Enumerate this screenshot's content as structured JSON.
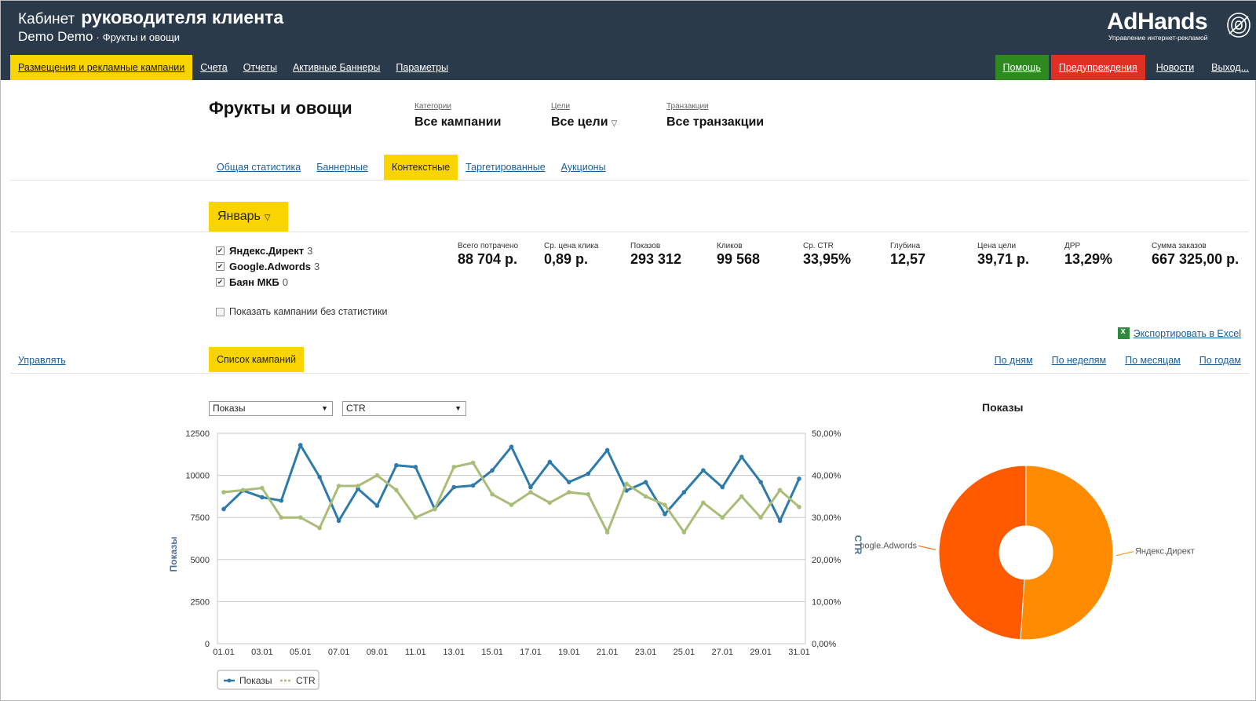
{
  "header": {
    "title_prefix": "Кабинет",
    "title_main": "руководителя клиента",
    "user": "Demo Demo",
    "separator": "·",
    "project": "Фрукты и овощи",
    "logo_text": "AdHands",
    "logo_sub": "Управление интернет-рекламой"
  },
  "nav": {
    "items": [
      {
        "label": "Размещения и рекламные кампании",
        "active": true
      },
      {
        "label": "Счета"
      },
      {
        "label": "Отчеты"
      },
      {
        "label": "Активные Баннеры"
      },
      {
        "label": "Параметры"
      }
    ],
    "help": "Помощь",
    "warnings": "Предупреждения",
    "news": "Новости",
    "exit": "Выход..."
  },
  "project": {
    "title": "Фрукты и овощи",
    "filters": [
      {
        "label": "Категории",
        "value": "Все кампании"
      },
      {
        "label": "Цели",
        "value": "Все цели"
      },
      {
        "label": "Транзакции",
        "value": "Все транзакции"
      }
    ]
  },
  "subtabs": [
    {
      "label": "Общая статистика"
    },
    {
      "label": "Баннерные"
    },
    {
      "label": "Контекстные",
      "active": true
    },
    {
      "label": "Таргетированные"
    },
    {
      "label": "Аукционы"
    }
  ],
  "month": "Январь",
  "systems": [
    {
      "name": "Яндекс.Директ",
      "count": "3",
      "checked": true
    },
    {
      "name": "Google.Adwords",
      "count": "3",
      "checked": true
    },
    {
      "name": "Баян МКБ",
      "count": "0",
      "checked": true
    }
  ],
  "show_empty_label": "Показать кампании без статистики",
  "stats": [
    {
      "label": "Всего потрачено",
      "value": "88 704 р."
    },
    {
      "label": "Ср. цена клика",
      "value": "0,89 р."
    },
    {
      "label": "Показов",
      "value": "293 312"
    },
    {
      "label": "Кликов",
      "value": "99 568"
    },
    {
      "label": "Ср. CTR",
      "value": "33,95%"
    },
    {
      "label": "Глубина",
      "value": "12,57"
    },
    {
      "label": "Цена цели",
      "value": "39,71 р."
    },
    {
      "label": "ДРР",
      "value": "13,29%"
    },
    {
      "label": "Сумма заказов",
      "value": "667 325,00 р."
    }
  ],
  "export_label": "Экспортировать в Excel",
  "manage_label": "Управлять",
  "campaign_list_label": "Список кампаний",
  "periods": [
    "По дням",
    "По неделям",
    "По месяцам",
    "По годам"
  ],
  "selects": {
    "left": "Показы",
    "right": "CTR"
  },
  "colors": {
    "header_bg": "#2b3a4a",
    "accent_yellow": "#f9d400",
    "help_green": "#2c8a1f",
    "warn_red": "#e03023",
    "series_blue": "#2e7bab",
    "series_green": "#a9bd78",
    "pie_orange": "#ff8c00",
    "pie_red": "#ff5a00"
  },
  "chart_data": [
    {
      "type": "line",
      "categories": [
        "01.01",
        "02.01",
        "03.01",
        "04.01",
        "05.01",
        "06.01",
        "07.01",
        "08.01",
        "09.01",
        "10.01",
        "11.01",
        "12.01",
        "13.01",
        "14.01",
        "15.01",
        "16.01",
        "17.01",
        "18.01",
        "19.01",
        "20.01",
        "21.01",
        "22.01",
        "23.01",
        "24.01",
        "25.01",
        "26.01",
        "27.01",
        "28.01",
        "29.01",
        "30.01",
        "31.01"
      ],
      "x_tick_labels": [
        "01.01",
        "03.01",
        "05.01",
        "07.01",
        "09.01",
        "11.01",
        "13.01",
        "15.01",
        "17.01",
        "19.01",
        "21.01",
        "23.01",
        "25.01",
        "27.01",
        "29.01",
        "31.01"
      ],
      "series": [
        {
          "name": "Показы",
          "axis": "left",
          "values": [
            8000,
            9100,
            8700,
            8500,
            11800,
            9900,
            7300,
            9200,
            8200,
            10600,
            10500,
            8000,
            9300,
            9400,
            10300,
            11700,
            9300,
            10800,
            9600,
            10100,
            11500,
            9100,
            9600,
            7700,
            9000,
            10300,
            9300,
            11100,
            9600,
            7300,
            9800
          ]
        },
        {
          "name": "CTR",
          "axis": "right",
          "values": [
            36.0,
            36.5,
            37.0,
            30.0,
            30.0,
            27.5,
            37.5,
            37.5,
            40.0,
            36.5,
            30.0,
            32.0,
            42.0,
            43.0,
            35.5,
            33.0,
            36.0,
            33.5,
            36.0,
            35.5,
            26.5,
            38.0,
            35.0,
            33.0,
            26.5,
            33.5,
            30.0,
            35.0,
            30.0,
            36.5,
            32.5
          ]
        }
      ],
      "ylabel": "Показы",
      "y2label": "CTR",
      "ylim": [
        0,
        12500
      ],
      "y2lim": [
        0,
        50
      ],
      "y_ticks": [
        "0",
        "2500",
        "5000",
        "7500",
        "10000",
        "12500"
      ],
      "y2_ticks": [
        "0,00%",
        "10,00%",
        "20,00%",
        "30,00%",
        "40,00%",
        "50,00%"
      ],
      "grid": true,
      "legend": "bottom-left"
    },
    {
      "type": "pie",
      "title": "Показы",
      "labels": [
        "Яндекс.Директ",
        "Google.Adwords"
      ],
      "values": [
        51,
        49
      ],
      "donut": true
    }
  ]
}
